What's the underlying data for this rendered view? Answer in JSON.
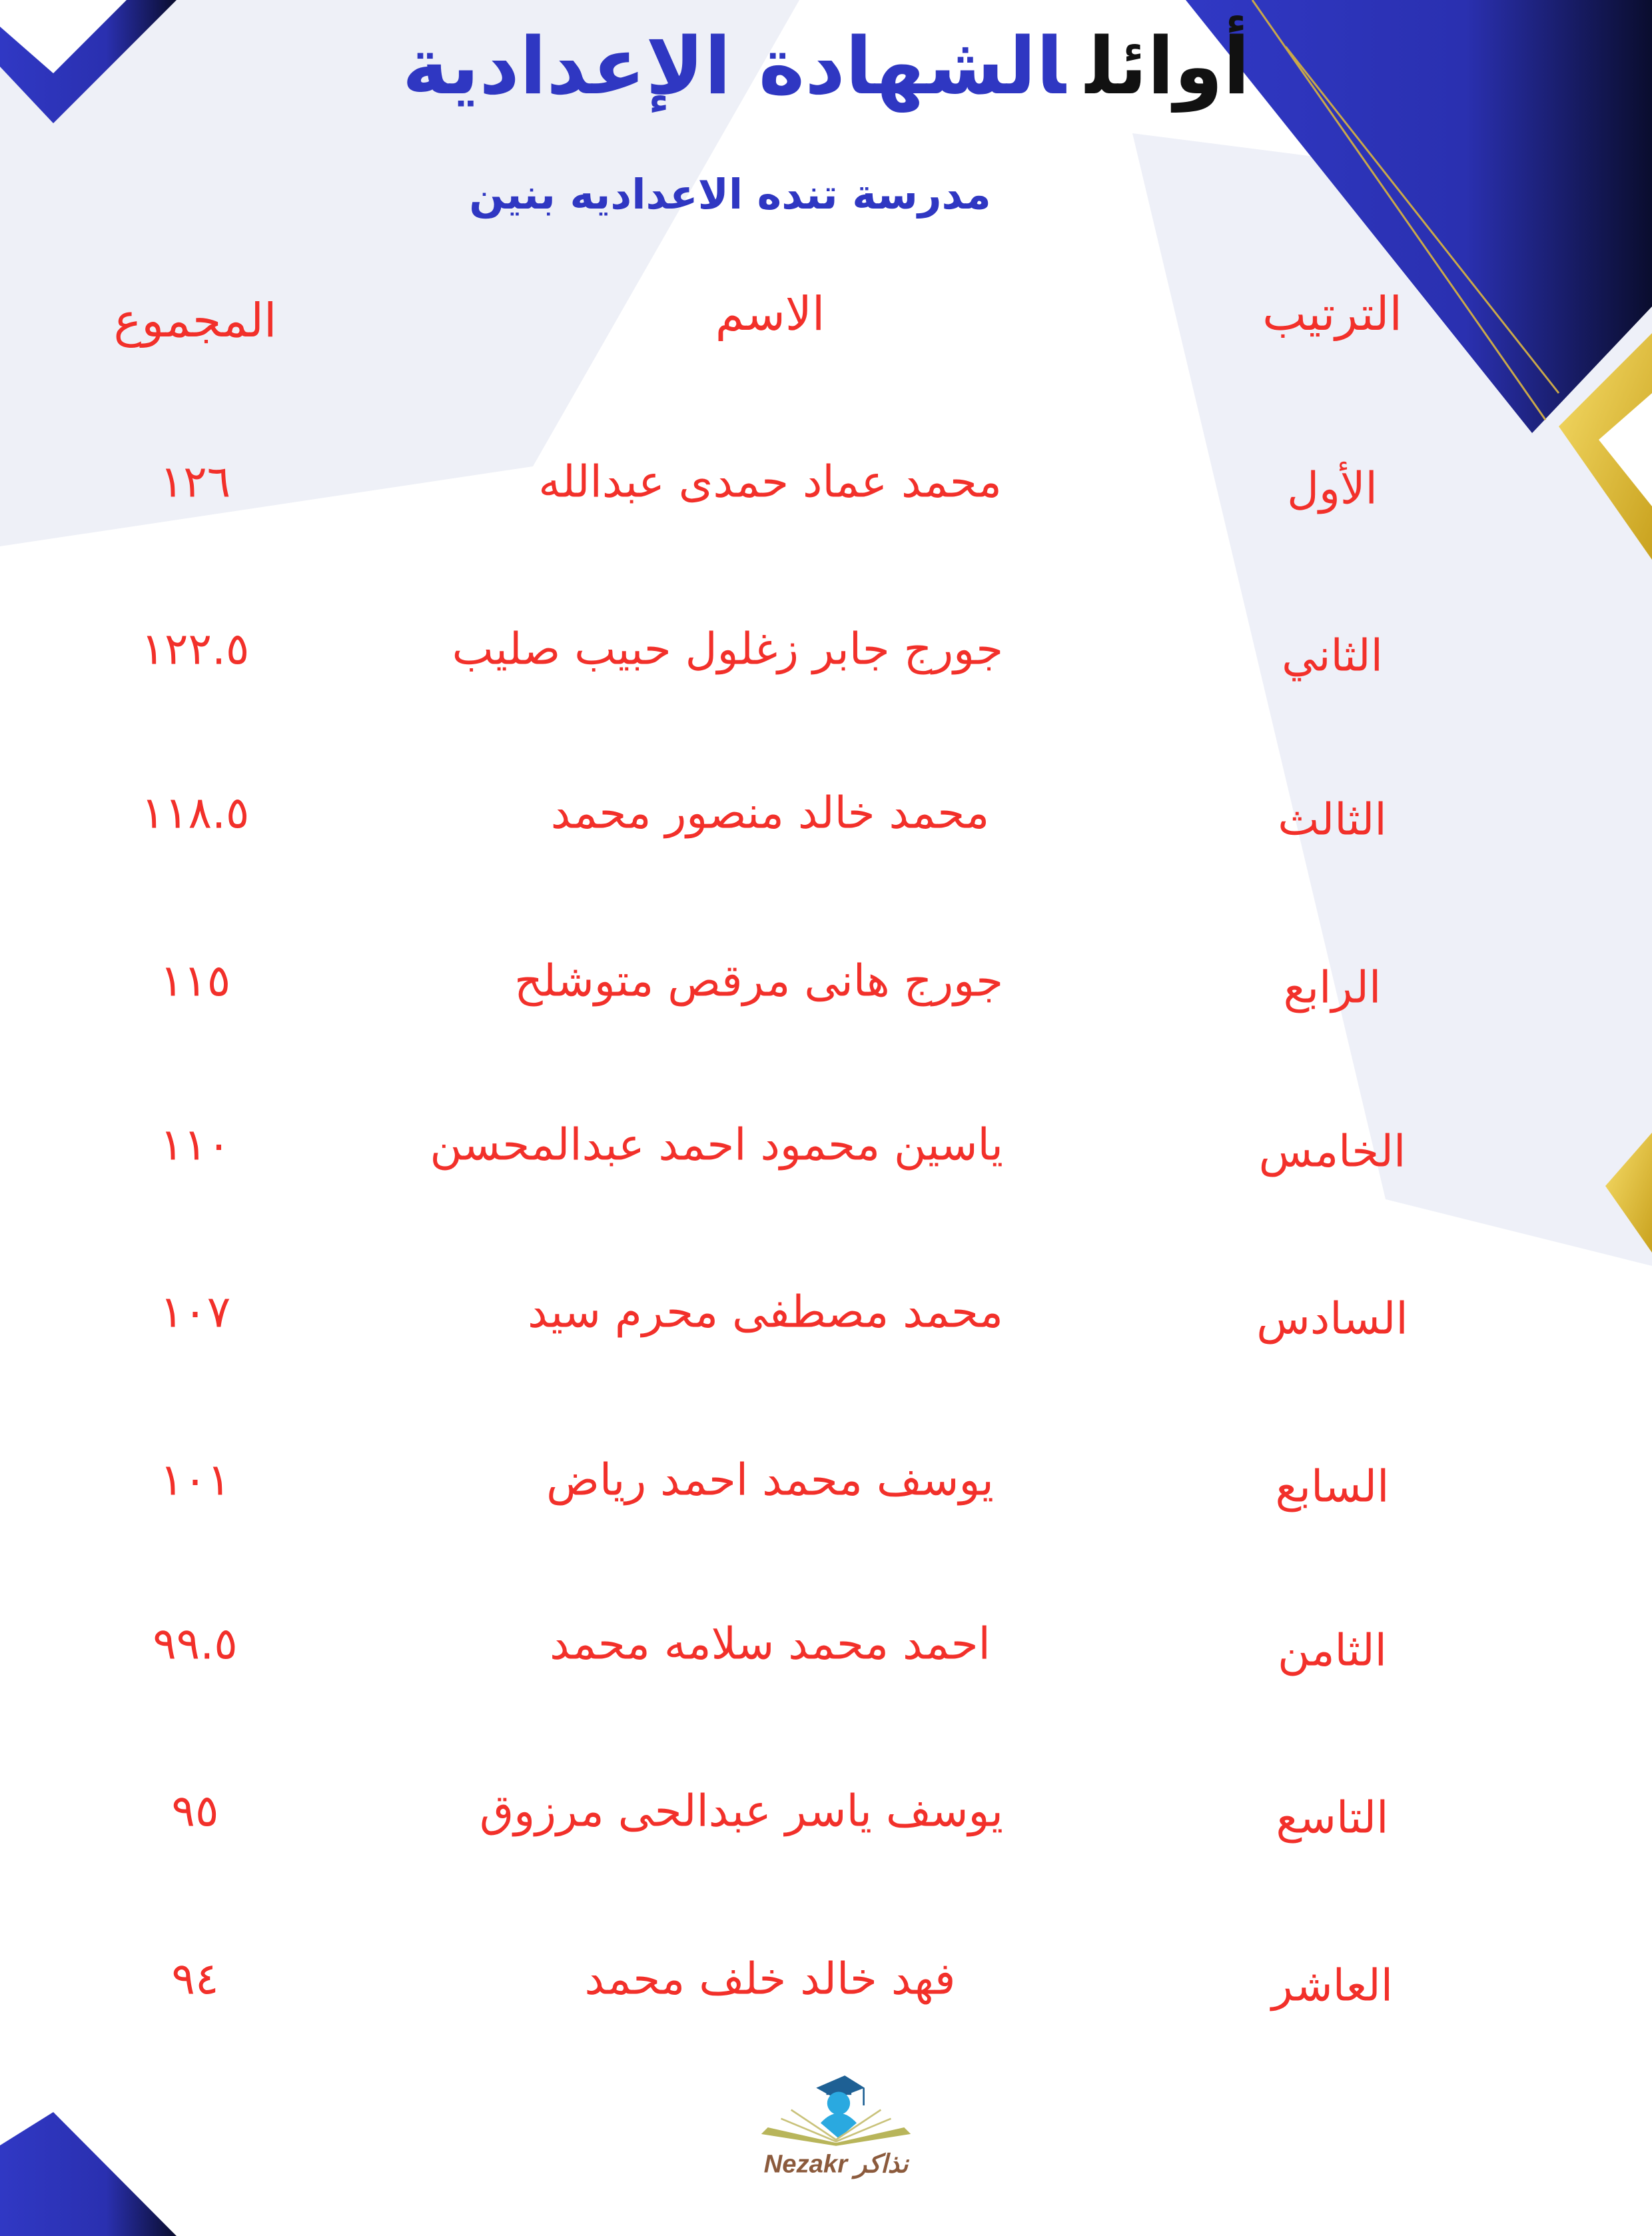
{
  "header": {
    "title_part1": "أوائل",
    "title_part2": "الشهادة الإعدادية",
    "subtitle": "مدرسة تنده الاعداديه بنين"
  },
  "table": {
    "columns": {
      "rank": "الترتيب",
      "name": "الاسم",
      "total": "المجموع"
    },
    "rows": [
      {
        "rank": "الأول",
        "name": "محمد عماد حمدى عبدالله",
        "total": "١٢٦"
      },
      {
        "rank": "الثاني",
        "name": "جورج جابر زغلول حبيب صليب",
        "total": "١٢٢.٥"
      },
      {
        "rank": "الثالث",
        "name": "محمد خالد منصور محمد",
        "total": "١١٨.٥"
      },
      {
        "rank": "الرابع",
        "name": "جورج هانى مرقص متوشلح",
        "total": "١١٥"
      },
      {
        "rank": "الخامس",
        "name": "ياسين محمود احمد عبدالمحسن",
        "total": "١١٠"
      },
      {
        "rank": "السادس",
        "name": "محمد مصطفى محرم سيد",
        "total": "١٠٧"
      },
      {
        "rank": "السابع",
        "name": "يوسف محمد احمد رياض",
        "total": "١٠١"
      },
      {
        "rank": "الثامن",
        "name": "احمد محمد سلامه محمد",
        "total": "٩٩.٥"
      },
      {
        "rank": "التاسع",
        "name": "يوسف ياسر عبدالحى مرزوق",
        "total": "٩٥"
      },
      {
        "rank": "العاشر",
        "name": "فهد خالد خلف محمد",
        "total": "٩٤"
      }
    ]
  },
  "logo": {
    "text": "Nezakr نذاكر"
  },
  "colors": {
    "accent_blue": "#2f37c2",
    "text_red": "#f2302a",
    "gold": "#e8c23a"
  }
}
